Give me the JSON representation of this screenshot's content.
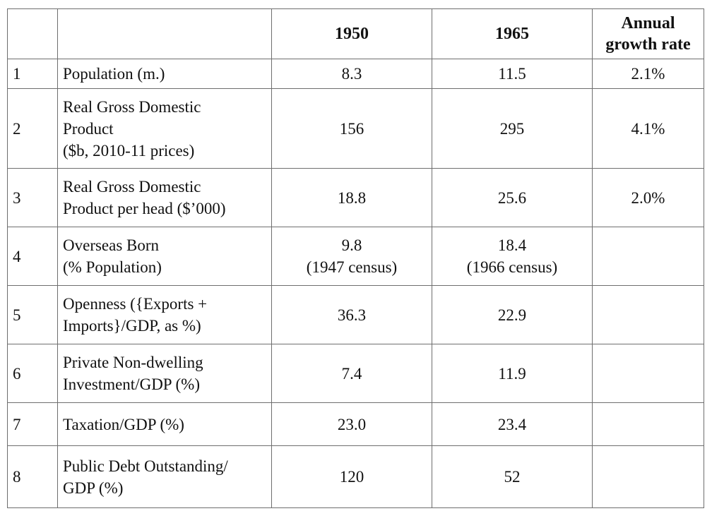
{
  "table": {
    "headers": {
      "col0": "",
      "col1": "",
      "col2": "1950",
      "col3": "1965",
      "col4": [
        "Annual",
        "growth rate"
      ]
    },
    "rows": [
      {
        "num": "1",
        "label": [
          "Population (m.)"
        ],
        "v1950": [
          "8.3"
        ],
        "v1965": [
          "11.5"
        ],
        "growth": "2.1%"
      },
      {
        "num": "2",
        "label": [
          "Real Gross Domestic",
          "Product",
          "($b, 2010-11 prices)"
        ],
        "v1950": [
          "156"
        ],
        "v1965": [
          "295"
        ],
        "growth": "4.1%"
      },
      {
        "num": "3",
        "label": [
          "Real Gross Domestic",
          "Product per head ($’000)"
        ],
        "v1950": [
          "18.8"
        ],
        "v1965": [
          "25.6"
        ],
        "growth": "2.0%"
      },
      {
        "num": "4",
        "label": [
          "Overseas Born",
          "(% Population)"
        ],
        "v1950": [
          "9.8",
          "(1947 census)"
        ],
        "v1965": [
          "18.4",
          "(1966 census)"
        ],
        "growth": ""
      },
      {
        "num": "5",
        "label": [
          "Openness ({Exports +",
          "Imports}/GDP, as %)"
        ],
        "v1950": [
          "36.3"
        ],
        "v1965": [
          "22.9"
        ],
        "growth": ""
      },
      {
        "num": "6",
        "label": [
          "Private Non-dwelling",
          "Investment/GDP (%)"
        ],
        "v1950": [
          "7.4"
        ],
        "v1965": [
          "11.9"
        ],
        "growth": ""
      },
      {
        "num": "7",
        "label": [
          "Taxation/GDP (%)"
        ],
        "v1950": [
          "23.0"
        ],
        "v1965": [
          "23.4"
        ],
        "growth": ""
      },
      {
        "num": "8",
        "label": [
          "Public Debt Outstanding/",
          "GDP (%)"
        ],
        "v1950": [
          "120"
        ],
        "v1965": [
          "52"
        ],
        "growth": ""
      }
    ]
  }
}
